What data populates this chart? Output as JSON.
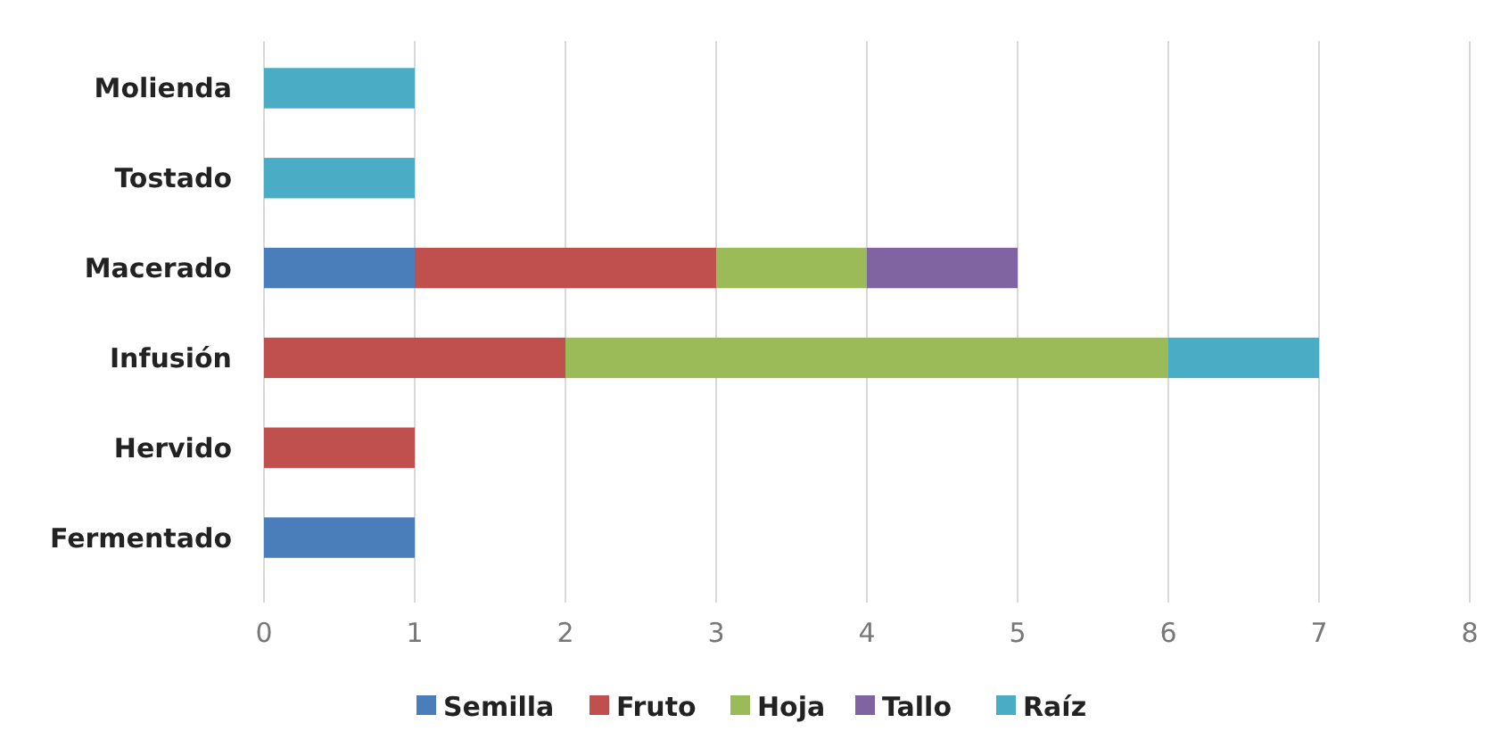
{
  "chart_data": {
    "type": "bar",
    "orientation": "horizontal",
    "stacked": true,
    "categories": [
      "Molienda",
      "Tostado",
      "Macerado",
      "Infusión",
      "Hervido",
      "Fermentado"
    ],
    "series": [
      {
        "name": "Semilla",
        "color": "#4a7ebb",
        "values": [
          0,
          0,
          1,
          0,
          0,
          1
        ]
      },
      {
        "name": "Fruto",
        "color": "#c0504d",
        "values": [
          0,
          0,
          2,
          2,
          1,
          0
        ]
      },
      {
        "name": "Hoja",
        "color": "#9bbb59",
        "values": [
          0,
          0,
          1,
          4,
          0,
          0
        ]
      },
      {
        "name": "Tallo",
        "color": "#8064a2",
        "values": [
          0,
          0,
          1,
          0,
          0,
          0
        ]
      },
      {
        "name": "Raíz",
        "color": "#4bacc6",
        "values": [
          1,
          1,
          0,
          1,
          0,
          0
        ]
      }
    ],
    "xlim": [
      0,
      8
    ],
    "xticks": [
      0,
      1,
      2,
      3,
      4,
      5,
      6,
      7,
      8
    ],
    "grid": "x",
    "legend": "bottom"
  }
}
